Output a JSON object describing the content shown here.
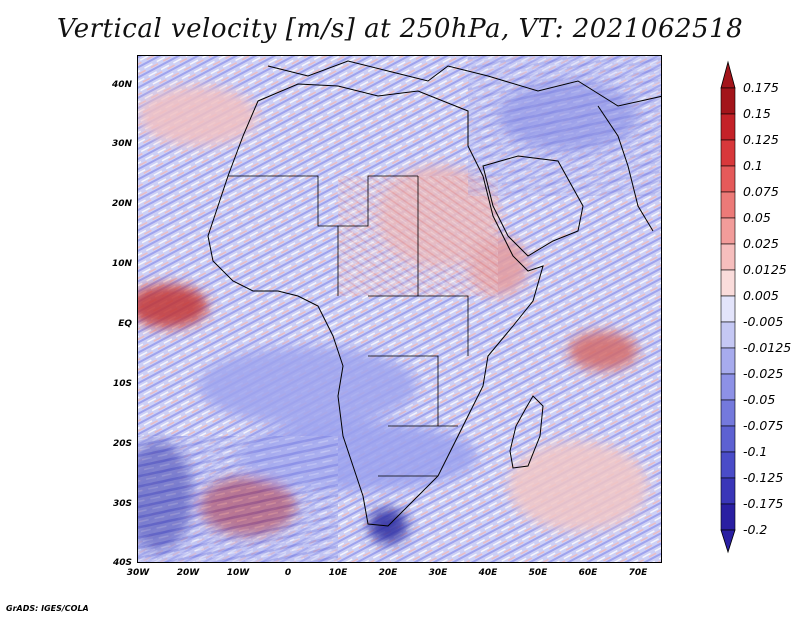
{
  "title": "Vertical velocity [m/s] at 250hPa, VT: 2021062518",
  "footer": "GrADS: IGES/COLA",
  "lat_ticks": [
    "40N",
    "30N",
    "20N",
    "10N",
    "EQ",
    "10S",
    "20S",
    "30S",
    "40S"
  ],
  "lon_ticks": [
    "30W",
    "20W",
    "10W",
    "0",
    "10E",
    "20E",
    "30E",
    "40E",
    "50E",
    "60E",
    "70E"
  ],
  "colorbar": {
    "labels": [
      "0.175",
      "0.15",
      "0.125",
      "0.1",
      "0.075",
      "0.05",
      "0.025",
      "0.0125",
      "0.005",
      "-0.005",
      "-0.0125",
      "-0.025",
      "-0.05",
      "-0.075",
      "-0.1",
      "-0.125",
      "-0.175",
      "-0.2"
    ],
    "colors": [
      "#a3151b",
      "#c42228",
      "#d8383b",
      "#e55a5a",
      "#ec7a78",
      "#f29c9a",
      "#f6bebd",
      "#fadcdb",
      "#ffffff",
      "#e3e4fb",
      "#c5c8f4",
      "#a7abed",
      "#8d91e6",
      "#7479dc",
      "#5d61d2",
      "#4a4cc8",
      "#3a36b8",
      "#2a1fa2"
    ]
  }
}
